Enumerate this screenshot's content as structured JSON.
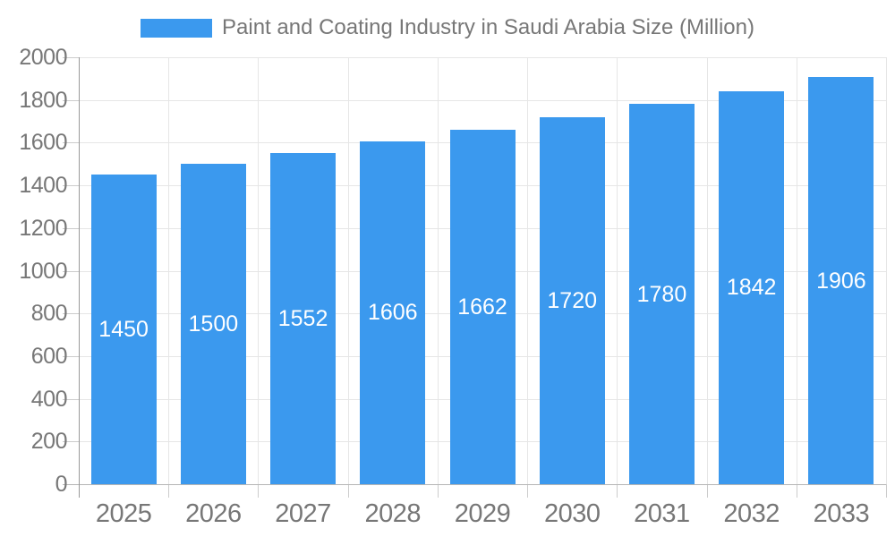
{
  "chart_data": {
    "type": "bar",
    "title": "Paint and Coating Industry in Saudi Arabia Size (Million)",
    "categories": [
      "2025",
      "2026",
      "2027",
      "2028",
      "2029",
      "2030",
      "2031",
      "2032",
      "2033"
    ],
    "values": [
      1450,
      1500,
      1552,
      1606,
      1662,
      1720,
      1780,
      1842,
      1906
    ],
    "series": [
      {
        "name": "Paint and Coating Industry in Saudi Arabia Size (Million)",
        "values": [
          1450,
          1500,
          1552,
          1606,
          1662,
          1720,
          1780,
          1842,
          1906
        ]
      }
    ],
    "xlabel": "",
    "ylabel": "",
    "ylim": [
      0,
      2000
    ],
    "ytick_step": 200,
    "ytick_labels": [
      "0",
      "200",
      "400",
      "600",
      "800",
      "1000",
      "1200",
      "1400",
      "1600",
      "1800",
      "2000"
    ],
    "grid": "on",
    "legend_position": "top-center",
    "value_label_style": "inside-center-white"
  },
  "legend": {
    "label": "Paint and Coating Industry in Saudi Arabia Size (Million)",
    "swatch_color": "#3B99EE"
  },
  "colors": {
    "bar": "#3B99EE",
    "grid": "#E6E6E6",
    "axis_line": "#999999",
    "baseline": "#B5B5B5",
    "tick": "#CCCCCC",
    "text": "#777777",
    "value_label": "#FFFFFF"
  }
}
